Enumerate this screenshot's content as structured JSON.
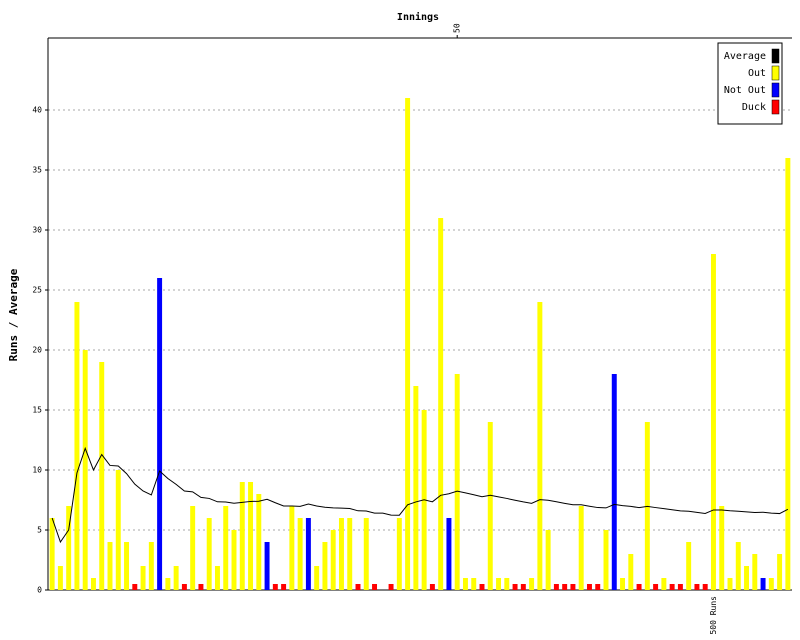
{
  "chart_data": {
    "type": "bar",
    "title": "Innings",
    "y_label": "Runs / Average",
    "x": [
      1,
      2,
      3,
      4,
      5,
      6,
      7,
      8,
      9,
      10,
      11,
      12,
      13,
      14,
      15,
      16,
      17,
      18,
      19,
      20,
      21,
      22,
      23,
      24,
      25,
      26,
      27,
      28,
      29,
      30,
      31,
      32,
      33,
      34,
      35,
      36,
      37,
      38,
      39,
      40,
      41,
      42,
      43,
      44,
      45,
      46,
      47,
      48,
      49,
      50,
      51,
      52,
      53,
      54,
      55,
      56,
      57,
      58,
      59,
      60,
      61,
      62,
      63,
      64,
      65,
      66,
      67,
      68,
      69,
      70,
      71,
      72,
      73,
      74,
      75,
      76,
      77,
      78,
      79,
      80,
      81,
      82,
      83,
      84,
      85,
      86,
      87,
      88,
      89,
      90
    ],
    "xlim": [
      0.5,
      90.5
    ],
    "xticks": [
      50
    ],
    "ylim": [
      0,
      46
    ],
    "yticks": [
      0,
      5,
      10,
      15,
      20,
      25,
      30,
      35,
      40
    ],
    "grid": true,
    "legend": "top-right",
    "annotations": [
      {
        "text": "500 Runs",
        "x": 81
      }
    ],
    "series": [
      {
        "name": "Average",
        "color": "#000000",
        "style": "line",
        "values": [
          6,
          4,
          5,
          9.75,
          11.8,
          10,
          11.29,
          10.38,
          10.33,
          9.7,
          8.82,
          8.25,
          7.92,
          9.92,
          9.29,
          8.8,
          8.25,
          8.18,
          7.72,
          7.63,
          7.35,
          7.33,
          7.23,
          7.3,
          7.38,
          7.4,
          7.56,
          7.27,
          7,
          7,
          6.97,
          7.17,
          7,
          6.9,
          6.84,
          6.82,
          6.79,
          6.6,
          6.58,
          6.41,
          6.41,
          6.24,
          6.23,
          7.1,
          7.34,
          7.52,
          7.35,
          7.89,
          8.02,
          8.24,
          8.09,
          7.94,
          7.77,
          7.9,
          7.76,
          7.63,
          7.48,
          7.34,
          7.22,
          7.53,
          7.48,
          7.35,
          7.22,
          7.1,
          7.1,
          6.98,
          6.87,
          6.84,
          7.13,
          7.03,
          6.97,
          6.86,
          6.97,
          6.87,
          6.78,
          6.69,
          6.59,
          6.56,
          6.47,
          6.38,
          6.67,
          6.67,
          6.6,
          6.56,
          6.51,
          6.46,
          6.48,
          6.41,
          6.37,
          6.72
        ]
      },
      {
        "name": "Out",
        "color": "#ffff00",
        "style": "bar",
        "values": [
          6,
          2,
          7,
          24,
          20,
          1,
          19,
          4,
          10,
          4,
          null,
          2,
          4,
          null,
          1,
          2,
          null,
          7,
          null,
          6,
          2,
          7,
          5,
          9,
          9,
          8,
          null,
          null,
          null,
          7,
          6,
          null,
          2,
          4,
          5,
          6,
          6,
          null,
          6,
          null,
          null,
          null,
          6,
          41,
          17,
          15,
          null,
          31,
          null,
          18,
          1,
          1,
          null,
          14,
          1,
          1,
          null,
          null,
          1,
          24,
          5,
          null,
          null,
          null,
          7,
          null,
          null,
          5,
          null,
          1,
          3,
          null,
          14,
          null,
          1,
          null,
          null,
          4,
          null,
          null,
          28,
          7,
          1,
          4,
          2,
          3,
          null,
          1,
          3,
          36
        ]
      },
      {
        "name": "Not Out",
        "color": "#0000ff",
        "style": "bar",
        "values": [
          null,
          null,
          null,
          null,
          null,
          null,
          null,
          null,
          null,
          null,
          null,
          null,
          null,
          26,
          null,
          null,
          null,
          null,
          null,
          null,
          null,
          null,
          null,
          null,
          null,
          null,
          4,
          null,
          null,
          null,
          null,
          6,
          null,
          null,
          null,
          null,
          null,
          null,
          null,
          null,
          null,
          null,
          null,
          null,
          null,
          null,
          null,
          null,
          6,
          null,
          null,
          null,
          null,
          null,
          null,
          null,
          null,
          null,
          null,
          null,
          null,
          null,
          null,
          null,
          null,
          null,
          null,
          null,
          18,
          null,
          null,
          null,
          null,
          null,
          null,
          null,
          null,
          null,
          null,
          null,
          null,
          null,
          null,
          null,
          null,
          null,
          1,
          null,
          null,
          null
        ]
      },
      {
        "name": "Duck",
        "color": "#ff0000",
        "style": "bar",
        "values": [
          null,
          null,
          null,
          null,
          null,
          null,
          null,
          null,
          null,
          null,
          0,
          null,
          null,
          null,
          null,
          null,
          0,
          null,
          0,
          null,
          null,
          null,
          null,
          null,
          null,
          null,
          null,
          0,
          0,
          null,
          null,
          null,
          null,
          null,
          null,
          null,
          null,
          0,
          null,
          0,
          null,
          0,
          null,
          null,
          null,
          null,
          0,
          null,
          null,
          null,
          null,
          null,
          0,
          null,
          null,
          null,
          0,
          0,
          null,
          null,
          null,
          0,
          0,
          0,
          null,
          0,
          0,
          null,
          null,
          null,
          null,
          0,
          null,
          0,
          null,
          0,
          0,
          null,
          0,
          0,
          null,
          null,
          null,
          null,
          null,
          null,
          null,
          null,
          null,
          null
        ]
      }
    ]
  }
}
